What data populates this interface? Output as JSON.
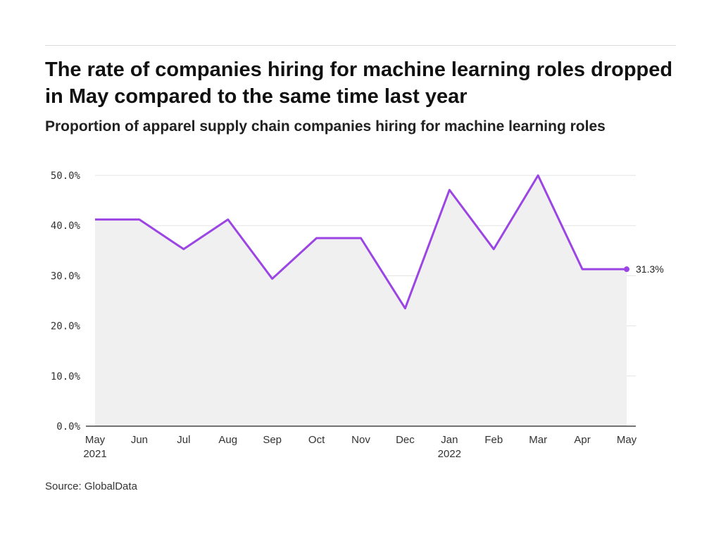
{
  "header": {
    "title": "The rate of companies hiring for machine learning roles dropped in May compared to the same time last year",
    "subtitle": "Proportion of apparel supply chain companies hiring for machine learning roles"
  },
  "footer": {
    "source": "Source: GlobalData"
  },
  "chart_data": {
    "type": "area",
    "title": "The rate of companies hiring for machine learning roles dropped in May compared to the same time last year",
    "subtitle": "Proportion of apparel supply chain companies hiring for machine learning roles",
    "xlabel": "",
    "ylabel": "",
    "categories": [
      "May",
      "Jun",
      "Jul",
      "Aug",
      "Sep",
      "Oct",
      "Nov",
      "Dec",
      "Jan",
      "Feb",
      "Mar",
      "Apr",
      "May"
    ],
    "category_sublabels": [
      "2021",
      "",
      "",
      "",
      "",
      "",
      "",
      "",
      "2022",
      "",
      "",
      "",
      ""
    ],
    "series": [
      {
        "values": [
          41.2,
          41.2,
          35.3,
          41.2,
          29.4,
          37.5,
          37.5,
          23.5,
          47.1,
          35.3,
          50.0,
          31.3,
          31.3
        ]
      }
    ],
    "ylim": [
      0,
      50
    ],
    "yticks": [
      0,
      10,
      20,
      30,
      40,
      50
    ],
    "ytick_labels": [
      "0.0%",
      "10.0%",
      "20.0%",
      "30.0%",
      "40.0%",
      "50.0%"
    ],
    "end_label": "31.3%",
    "grid": true,
    "legend": "none",
    "colors": {
      "line": "#9b45e4",
      "area": "#f0f0f0",
      "grid": "#e3e3e3",
      "axis": "#222222"
    }
  }
}
